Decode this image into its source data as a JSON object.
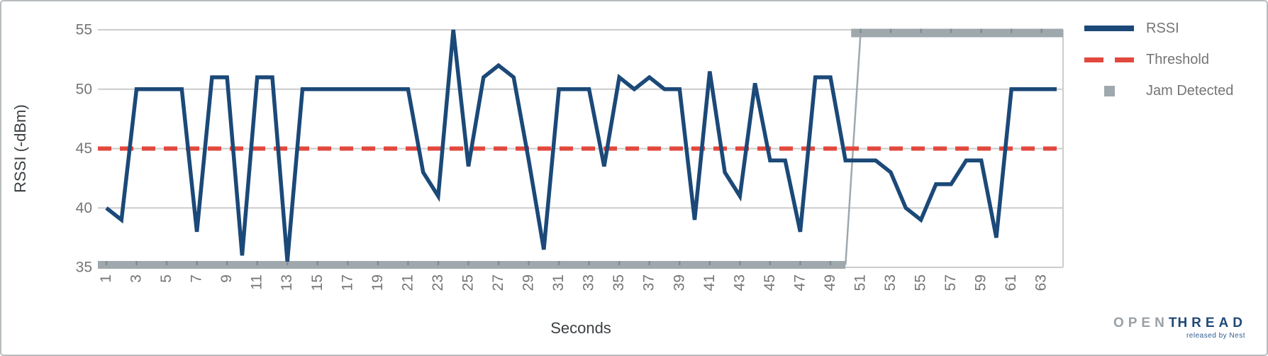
{
  "chart_data": {
    "type": "line",
    "xlabel": "Seconds",
    "ylabel": "RSSI (-dBm)",
    "ylim": [
      35,
      55
    ],
    "grid": "horizontal",
    "legend_position": "right",
    "x": [
      1,
      2,
      3,
      4,
      5,
      6,
      7,
      8,
      9,
      10,
      11,
      12,
      13,
      14,
      15,
      16,
      17,
      18,
      19,
      20,
      21,
      22,
      23,
      24,
      25,
      26,
      27,
      28,
      29,
      30,
      31,
      32,
      33,
      34,
      35,
      36,
      37,
      38,
      39,
      40,
      41,
      42,
      43,
      44,
      45,
      46,
      47,
      48,
      49,
      50,
      51,
      52,
      53,
      54,
      55,
      56,
      57,
      58,
      59,
      60,
      61,
      62,
      63,
      64
    ],
    "x_ticks": [
      1,
      3,
      5,
      7,
      9,
      11,
      13,
      15,
      17,
      19,
      21,
      23,
      25,
      27,
      29,
      31,
      33,
      35,
      37,
      39,
      41,
      43,
      45,
      47,
      49,
      51,
      53,
      55,
      57,
      59,
      61,
      63
    ],
    "y_ticks": [
      35,
      40,
      45,
      50,
      55
    ],
    "series": [
      {
        "name": "RSSI",
        "type": "line",
        "color": "#1b4978",
        "values": [
          40,
          39,
          50,
          50,
          50,
          50,
          38,
          51,
          51,
          36,
          51,
          51,
          35.5,
          50,
          50,
          50,
          50,
          50,
          50,
          50,
          50,
          43,
          41,
          55,
          43.5,
          51,
          52,
          51,
          44,
          36.5,
          50,
          50,
          50,
          43.5,
          51,
          50,
          51,
          50,
          50,
          39,
          51.5,
          43,
          41,
          50.5,
          44,
          44,
          38,
          51,
          51,
          44,
          44,
          44,
          43,
          40,
          39,
          42,
          42,
          44,
          44,
          37.5,
          50,
          50,
          50,
          50
        ]
      },
      {
        "name": "Threshold",
        "type": "dashed-line",
        "color": "#e2483d",
        "value": 45
      },
      {
        "name": "Jam Detected",
        "type": "step",
        "color": "#9ea8ad",
        "low_level": 35,
        "high_level": 55,
        "low_x_range": [
          1,
          50
        ],
        "high_x_range": [
          51,
          64
        ],
        "transition_x": 51
      }
    ]
  },
  "legend": {
    "items": [
      {
        "label": "RSSI",
        "swatch": "line"
      },
      {
        "label": "Threshold",
        "swatch": "dashes"
      },
      {
        "label": "Jam Detected",
        "swatch": "square"
      }
    ]
  },
  "logo": {
    "part1": "OPEN",
    "part2_a": "T",
    "part2_b": "HREAD",
    "tagline": "released by Nest"
  }
}
